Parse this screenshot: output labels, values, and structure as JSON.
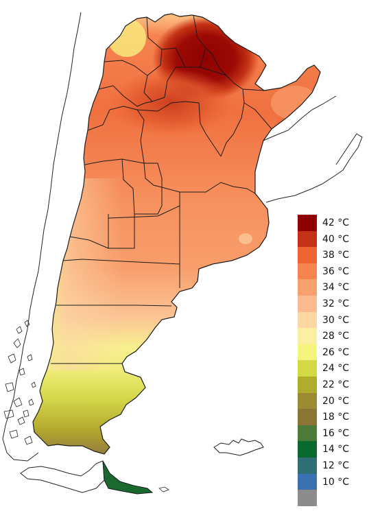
{
  "legend": {
    "items": [
      {
        "label": "42 °C",
        "color": "#8e0000"
      },
      {
        "label": "40 °C",
        "color": "#c43215"
      },
      {
        "label": "38 °C",
        "color": "#ee6332"
      },
      {
        "label": "36 °C",
        "color": "#f5844f"
      },
      {
        "label": "34 °C",
        "color": "#f8a06e"
      },
      {
        "label": "32 °C",
        "color": "#fbbb8f"
      },
      {
        "label": "30 °C",
        "color": "#fdd6a6"
      },
      {
        "label": "28 °C",
        "color": "#fbefa2"
      },
      {
        "label": "26 °C",
        "color": "#f5f57e"
      },
      {
        "label": "24 °C",
        "color": "#d3da45"
      },
      {
        "label": "22 °C",
        "color": "#b0ad2d"
      },
      {
        "label": "20 °C",
        "color": "#9c8a33"
      },
      {
        "label": "18 °C",
        "color": "#8c7434"
      },
      {
        "label": "16 °C",
        "color": "#4c7a3a"
      },
      {
        "label": "14 °C",
        "color": "#0a6a2e"
      },
      {
        "label": "12 °C",
        "color": "#2e6e74"
      },
      {
        "label": "10 °C",
        "color": "#3c70b0"
      },
      {
        "label": "",
        "color": "#8c8c8c"
      }
    ]
  }
}
